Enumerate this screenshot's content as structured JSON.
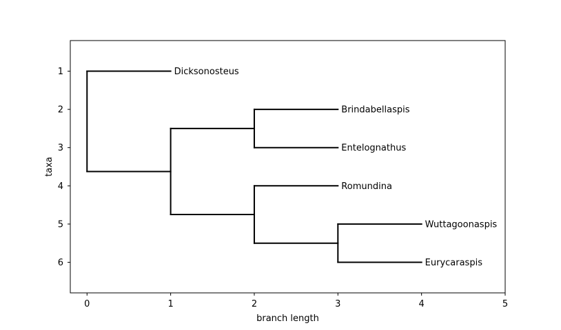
{
  "chart_data": {
    "type": "dendrogram",
    "title": "",
    "xlabel": "branch length",
    "ylabel": "taxa",
    "xlim": [
      -0.2,
      5
    ],
    "ylim": [
      6.8,
      0.2
    ],
    "x_ticks": [
      0,
      1,
      2,
      3,
      4,
      5
    ],
    "y_ticks": [
      1,
      2,
      3,
      4,
      5,
      6
    ],
    "grid": false,
    "line_color": "#000000",
    "leaves": [
      {
        "name": "Dicksonosteus",
        "x": 1,
        "y": 1
      },
      {
        "name": "Brindabellaspis",
        "x": 3,
        "y": 2
      },
      {
        "name": "Entelognathus",
        "x": 3,
        "y": 3
      },
      {
        "name": "Romundina",
        "x": 3,
        "y": 4
      },
      {
        "name": "Wuttagoonaspis",
        "x": 4,
        "y": 5
      },
      {
        "name": "Eurycaraspis",
        "x": 4,
        "y": 6
      }
    ],
    "clades": [
      {
        "x": 0,
        "y_top": 1,
        "y_bottom": 3.625
      },
      {
        "x": 1,
        "y_top": 2.5,
        "y_bottom": 4.75
      },
      {
        "x": 2,
        "y_top": 2,
        "y_bottom": 3
      },
      {
        "x": 2,
        "y_top": 4,
        "y_bottom": 5.5
      },
      {
        "x": 3,
        "y_top": 5,
        "y_bottom": 6
      }
    ],
    "branches": [
      {
        "x1": 0,
        "x2": 1,
        "y": 1
      },
      {
        "x1": 0,
        "x2": 1,
        "y": 3.625
      },
      {
        "x1": 1,
        "x2": 2,
        "y": 2.5
      },
      {
        "x1": 1,
        "x2": 2,
        "y": 4.75
      },
      {
        "x1": 2,
        "x2": 3,
        "y": 2
      },
      {
        "x1": 2,
        "x2": 3,
        "y": 3
      },
      {
        "x1": 2,
        "x2": 3,
        "y": 4
      },
      {
        "x1": 2,
        "x2": 3,
        "y": 5.5
      },
      {
        "x1": 3,
        "x2": 4,
        "y": 5
      },
      {
        "x1": 3,
        "x2": 4,
        "y": 6
      }
    ]
  }
}
